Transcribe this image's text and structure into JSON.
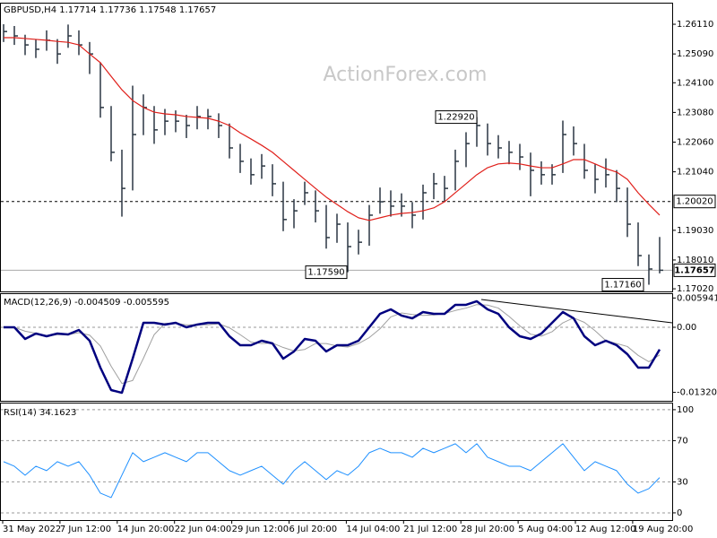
{
  "chart_data": [
    {
      "type": "ohlc",
      "title": "GBPUSD,H4  1.17714 1.17736 1.17548 1.17657",
      "watermark": "ActionForex.com",
      "color": "#2a3642",
      "high": [
        1.2611,
        1.2605,
        1.2575,
        1.256,
        1.259,
        1.256,
        1.261,
        1.259,
        1.255,
        1.248,
        1.233,
        1.218,
        1.24,
        1.237,
        1.233,
        1.232,
        1.2315,
        1.23,
        1.233,
        1.232,
        1.2305,
        1.227,
        1.22,
        1.215,
        1.2165,
        1.213,
        1.207,
        1.201,
        1.207,
        1.204,
        1.199,
        1.196,
        1.193,
        1.1905,
        1.199,
        1.205,
        1.204,
        1.203,
        1.2,
        1.206,
        1.21,
        1.209,
        1.218,
        1.224,
        1.2292,
        1.227,
        1.223,
        1.221,
        1.22,
        1.217,
        1.214,
        1.213,
        1.228,
        1.226,
        1.22,
        1.213,
        1.215,
        1.211,
        1.205,
        1.193,
        1.182,
        1.188
      ],
      "low": [
        1.255,
        1.254,
        1.2505,
        1.2495,
        1.252,
        1.2475,
        1.253,
        1.2505,
        1.244,
        1.229,
        1.214,
        1.195,
        1.204,
        1.223,
        1.22,
        1.223,
        1.224,
        1.222,
        1.225,
        1.225,
        1.222,
        1.215,
        1.21,
        1.206,
        1.208,
        1.202,
        1.19,
        1.191,
        1.199,
        1.193,
        1.184,
        1.186,
        1.1759,
        1.182,
        1.185,
        1.196,
        1.195,
        1.195,
        1.191,
        1.194,
        1.201,
        1.2,
        1.204,
        1.212,
        1.219,
        1.216,
        1.215,
        1.213,
        1.211,
        1.202,
        1.206,
        1.206,
        1.21,
        1.216,
        1.208,
        1.203,
        1.205,
        1.2,
        1.188,
        1.178,
        1.1716,
        1.1755
      ],
      "close": [
        1.2586,
        1.2571,
        1.254,
        1.2525,
        1.2556,
        1.2509,
        1.2571,
        1.254,
        1.2509,
        1.2325,
        1.2171,
        1.2047,
        1.2232,
        1.2325,
        1.2248,
        1.2278,
        1.2278,
        1.2263,
        1.2294,
        1.2294,
        1.2263,
        1.2186,
        1.214,
        1.2094,
        1.2124,
        1.2063,
        1.194,
        1.197,
        1.2032,
        1.197,
        1.1878,
        1.1924,
        1.1847,
        1.1862,
        1.1955,
        1.2001,
        1.1986,
        1.1986,
        1.1955,
        1.2032,
        1.2063,
        1.2047,
        1.214,
        1.2201,
        1.2263,
        1.2201,
        1.2186,
        1.2171,
        1.2155,
        1.2109,
        1.2094,
        1.2094,
        1.2232,
        1.2201,
        1.2109,
        1.2078,
        1.2094,
        1.2047,
        1.1924,
        1.1816,
        1.177,
        1.17657
      ],
      "ma": {
        "color": "#e0201b",
        "values": [
          1.2565,
          1.2565,
          1.2562,
          1.2559,
          1.2556,
          1.2552,
          1.2549,
          1.254,
          1.2509,
          1.2479,
          1.2432,
          1.2386,
          1.2349,
          1.2325,
          1.2309,
          1.2303,
          1.23,
          1.2294,
          1.2291,
          1.2288,
          1.2278,
          1.2263,
          1.2238,
          1.2217,
          1.2195,
          1.2171,
          1.214,
          1.2109,
          1.2078,
          1.2047,
          1.2017,
          1.1992,
          1.1967,
          1.1946,
          1.1937,
          1.1946,
          1.1955,
          1.1961,
          1.1964,
          1.197,
          1.198,
          1.2001,
          1.2032,
          1.2063,
          1.2094,
          1.2118,
          1.2131,
          1.2134,
          1.2131,
          1.2124,
          1.2118,
          1.2118,
          1.2131,
          1.2146,
          1.2146,
          1.2131,
          1.2115,
          1.2103,
          1.2078,
          1.2032,
          1.1992,
          1.1955
        ]
      },
      "ylim": [
        1.1693,
        1.2682
      ],
      "yticks": [
        {
          "value": 1.2611,
          "label": "1.26110"
        },
        {
          "value": 1.2509,
          "label": "1.25090"
        },
        {
          "value": 1.241,
          "label": "1.24100"
        },
        {
          "value": 1.2308,
          "label": "1.23080"
        },
        {
          "value": 1.2206,
          "label": "1.22060"
        },
        {
          "value": 1.2104,
          "label": "1.21040"
        },
        {
          "value": 1.1903,
          "label": "1.19030"
        },
        {
          "value": 1.1801,
          "label": "1.18010"
        },
        {
          "value": 1.1702,
          "label": "1.17020"
        }
      ],
      "level": {
        "value": 1.2002,
        "label": "1.20020"
      },
      "last_price": {
        "value": 1.17657,
        "label": "1.17657"
      },
      "annotations": [
        {
          "value": 1.2292,
          "label": "1.22920"
        },
        {
          "value": 1.1759,
          "label": "1.17590"
        },
        {
          "value": 1.1716,
          "label": "1.17160"
        }
      ]
    },
    {
      "type": "macd",
      "title": "MACD(12,26,9) -0.004509 -0.005595",
      "series": [
        {
          "color": "#00007f",
          "values": [
            0,
            0,
            -0.00237,
            -0.00127,
            -0.00182,
            -0.00127,
            -0.00146,
            -0.00055,
            -0.00273,
            -0.00819,
            -0.01274,
            -0.01329,
            -0.00637,
            0.00091,
            0.00091,
            0.00055,
            0.00091,
            0,
            0.00055,
            0.00091,
            0.00091,
            -0.00182,
            -0.00364,
            -0.00364,
            -0.00273,
            -0.00328,
            -0.00637,
            -0.00491,
            -0.00237,
            -0.00273,
            -0.00491,
            -0.00364,
            -0.00364,
            -0.00273,
            0,
            0.00273,
            0.00364,
            0.00237,
            0.00182,
            0.00309,
            0.00273,
            0.00273,
            0.00455,
            0.00455,
            0.00528,
            0.00364,
            0.00273,
            0,
            -0.00182,
            -0.00237,
            -0.00127,
            0.00091,
            0.00309,
            0.00182,
            -0.00182,
            -0.00364,
            -0.00273,
            -0.00364,
            -0.00546,
            -0.00819,
            -0.00819,
            -0.00451
          ]
        },
        {
          "color": "#a0a0a0",
          "values": [
            0,
            0,
            -0.0008,
            -0.0012,
            -0.0018,
            -0.0015,
            -0.0015,
            -0.0011,
            -0.0016,
            -0.0038,
            -0.0079,
            -0.0114,
            -0.0108,
            -0.0063,
            -0.0015,
            0.0008,
            0.0008,
            0.0005,
            0.0005,
            0.0005,
            0.0007,
            -0.0001,
            -0.0015,
            -0.003,
            -0.0033,
            -0.0032,
            -0.0041,
            -0.0048,
            -0.0045,
            -0.0033,
            -0.0033,
            -0.0038,
            -0.004,
            -0.0033,
            -0.0021,
            -0.0003,
            0.0021,
            0.0029,
            0.0026,
            0.0024,
            0.0025,
            0.0028,
            0.0034,
            0.0039,
            0.0046,
            0.0045,
            0.0039,
            0.0022,
            0.0003,
            -0.0014,
            -0.0018,
            -0.0009,
            0.0009,
            0.0019,
            0.001,
            -0.0007,
            -0.0027,
            -0.0033,
            -0.0039,
            -0.0057,
            -0.007,
            -0.0056
          ]
        }
      ],
      "ylim": [
        -0.01492,
        0.00673
      ],
      "yticks": [
        0.005941,
        {
          "value": 0,
          "label": "0.00"
        },
        -0.013207
      ]
    },
    {
      "type": "rsi",
      "title": "RSI(14) 34.1623",
      "color": "#1e90ff",
      "values": [
        49.6,
        45.2,
        36.5,
        45.2,
        40.9,
        49.6,
        45.2,
        49.6,
        36.5,
        19.1,
        14.8,
        36.5,
        58.3,
        49.6,
        53.9,
        58.3,
        53.9,
        49.6,
        58.3,
        58.3,
        49.6,
        40.9,
        36.5,
        40.9,
        45.2,
        36.5,
        27.8,
        40.9,
        49.6,
        40.9,
        32.2,
        40.9,
        36.5,
        45.2,
        58.3,
        62.6,
        58.3,
        58.3,
        53.9,
        62.6,
        58.3,
        62.6,
        67,
        58.3,
        67,
        53.9,
        49.6,
        45.2,
        45.2,
        40.9,
        49.6,
        58.3,
        67,
        53.9,
        40.9,
        49.6,
        45.2,
        40.9,
        27.8,
        19.1,
        23.5,
        34.2
      ],
      "ylim": [
        -7,
        106
      ],
      "yticks": [
        100,
        70,
        30,
        0
      ],
      "x_labels": [
        "31 May 2022",
        "7 Jun 12:00",
        "14 Jun 20:00",
        "22 Jun 04:00",
        "29 Jun 12:00",
        "6 Jul 20:00",
        "14 Jul 04:00",
        "21 Jul 12:00",
        "28 Jul 20:00",
        "5 Aug 04:00",
        "12 Aug 12:00",
        "19 Aug 20:00"
      ]
    }
  ]
}
